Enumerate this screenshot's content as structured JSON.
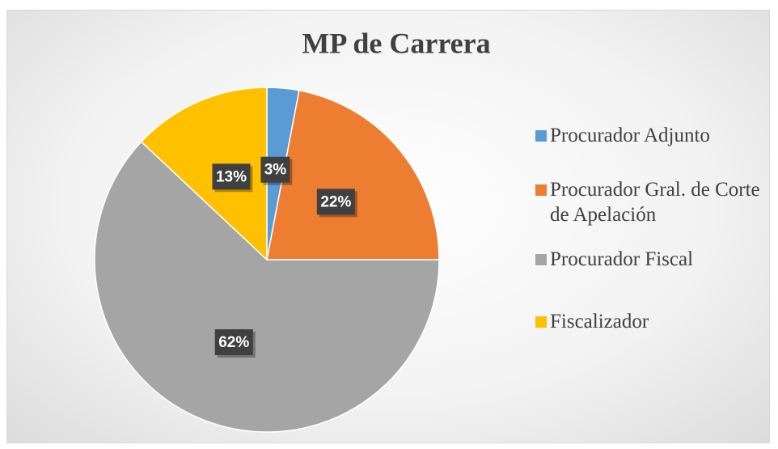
{
  "chart_data": {
    "type": "pie",
    "title": "MP de Carrera",
    "categories": [
      "Procurador Adjunto",
      "Procurador Gral. de Corte de Apelación",
      "Procurador Fiscal",
      "Fiscalizador"
    ],
    "values": [
      3,
      22,
      62,
      13
    ],
    "value_labels": [
      "3%",
      "22%",
      "62%",
      "13%"
    ],
    "colors": [
      "#5b9bd5",
      "#ed7d31",
      "#a5a5a5",
      "#ffc000"
    ],
    "legend": "right"
  }
}
